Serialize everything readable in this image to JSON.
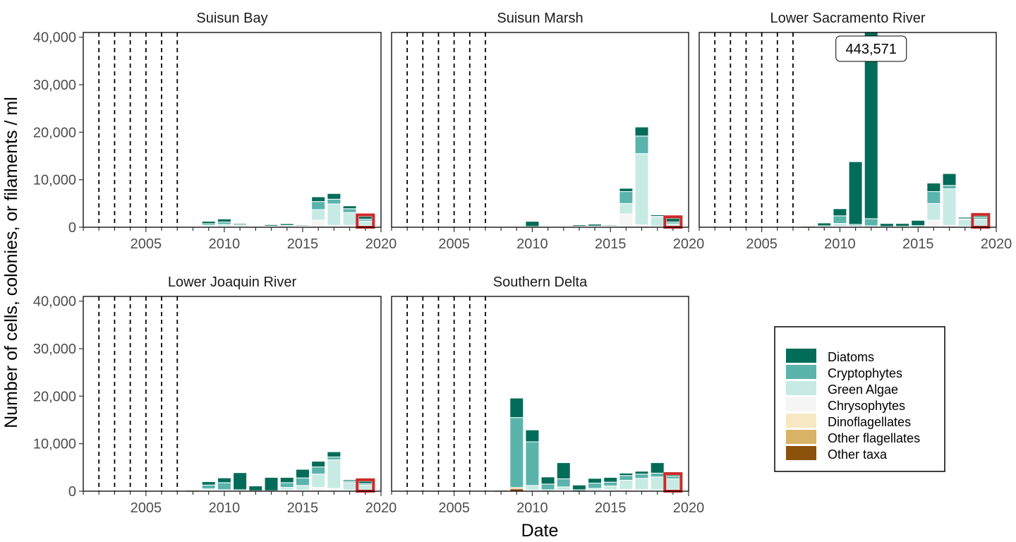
{
  "chart_data": {
    "type": "bar",
    "stacked": true,
    "xlabel": "Date",
    "ylabel": "Number of cells, colonies, or filaments / ml",
    "ylim": [
      0,
      41000
    ],
    "y_ticks": [
      0,
      10000,
      20000,
      30000,
      40000
    ],
    "y_tick_labels": [
      "0",
      "10,000",
      "20,000",
      "30,000",
      "40,000"
    ],
    "xlim": [
      2001,
      2020
    ],
    "x_ticks": [
      2005,
      2010,
      2015,
      2020
    ],
    "x_tick_labels": [
      "2005",
      "2010",
      "2015",
      "2020"
    ],
    "dashed_years": [
      2002,
      2003,
      2004,
      2005,
      2006,
      2007
    ],
    "highlight_year": 2019,
    "highlight_color": "#cc2a2a",
    "taxa": [
      {
        "name": "Diatoms",
        "color": "#016c59"
      },
      {
        "name": "Cryptophytes",
        "color": "#5ab4ac"
      },
      {
        "name": "Green Algae",
        "color": "#c7eae5"
      },
      {
        "name": "Chrysophytes",
        "color": "#f5f5f5"
      },
      {
        "name": "Dinoflagellates",
        "color": "#f6e8c3"
      },
      {
        "name": "Other flagellates",
        "color": "#d8b365"
      },
      {
        "name": "Other taxa",
        "color": "#8c510a"
      }
    ],
    "legend_position": "right",
    "panels": [
      {
        "title": "Suisun Bay",
        "years": [
          2008,
          2009,
          2010,
          2011,
          2012,
          2013,
          2014,
          2015,
          2016,
          2017,
          2018,
          2019
        ],
        "stacks": [
          [
            0,
            0,
            0,
            0,
            0,
            80,
            150
          ],
          [
            500,
            350,
            250,
            150,
            0,
            0,
            0
          ],
          [
            650,
            500,
            450,
            150,
            0,
            0,
            0
          ],
          [
            250,
            200,
            200,
            100,
            0,
            0,
            0
          ],
          [
            150,
            50,
            100,
            0,
            0,
            0,
            0
          ],
          [
            300,
            150,
            100,
            0,
            0,
            0,
            0
          ],
          [
            350,
            200,
            200,
            0,
            0,
            0,
            0
          ],
          [
            200,
            150,
            150,
            0,
            0,
            0,
            0
          ],
          [
            1000,
            1700,
            2200,
            1500,
            0,
            0,
            0
          ],
          [
            1200,
            1000,
            4500,
            400,
            0,
            0,
            0
          ],
          [
            600,
            800,
            2700,
            400,
            0,
            0,
            0
          ],
          [
            600,
            400,
            1000,
            300,
            0,
            0,
            0
          ]
        ]
      },
      {
        "title": "Suisun Marsh",
        "years": [
          2008,
          2009,
          2010,
          2013,
          2014,
          2015,
          2016,
          2017,
          2018,
          2019
        ],
        "stacks": [
          [
            0,
            0,
            0,
            0,
            0,
            100,
            150
          ],
          [
            100,
            50,
            50,
            0,
            0,
            0,
            0
          ],
          [
            1100,
            100,
            50,
            0,
            0,
            0,
            0
          ],
          [
            300,
            100,
            100,
            0,
            0,
            0,
            0
          ],
          [
            400,
            150,
            100,
            0,
            0,
            0,
            0
          ],
          [
            200,
            150,
            150,
            0,
            0,
            0,
            0
          ],
          [
            700,
            2500,
            2200,
            2800,
            0,
            0,
            0
          ],
          [
            1900,
            3700,
            15000,
            500,
            0,
            0,
            0
          ],
          [
            300,
            200,
            1900,
            200,
            0,
            0,
            0
          ],
          [
            800,
            400,
            400,
            300,
            0,
            0,
            0
          ]
        ]
      },
      {
        "title": "Lower Sacramento River",
        "years": [
          2008,
          2009,
          2010,
          2011,
          2012,
          2013,
          2014,
          2015,
          2016,
          2017,
          2018,
          2019
        ],
        "stacks": [
          [
            0,
            0,
            0,
            0,
            0,
            100,
            200
          ],
          [
            600,
            200,
            100,
            0,
            0,
            0,
            0
          ],
          [
            1500,
            1600,
            600,
            200,
            0,
            0,
            0
          ],
          [
            13200,
            300,
            200,
            100,
            0,
            0,
            0
          ],
          [
            441800,
            1500,
            300,
            0,
            0,
            0,
            0
          ],
          [
            650,
            150,
            0,
            0,
            0,
            0,
            0
          ],
          [
            600,
            200,
            0,
            0,
            0,
            0,
            0
          ],
          [
            1100,
            250,
            100,
            0,
            0,
            0,
            0
          ],
          [
            1800,
            2500,
            3500,
            1500,
            0,
            0,
            0
          ],
          [
            2500,
            700,
            7700,
            400,
            0,
            0,
            0
          ],
          [
            300,
            200,
            1400,
            200,
            0,
            0,
            0
          ],
          [
            300,
            400,
            1600,
            100,
            0,
            0,
            0
          ]
        ],
        "callout": {
          "year": 2012,
          "label": "443,571"
        }
      },
      {
        "title": "Lower Joaquin River",
        "years": [
          2008,
          2009,
          2010,
          2011,
          2012,
          2013,
          2014,
          2015,
          2016,
          2017,
          2018,
          2019
        ],
        "stacks": [
          [
            0,
            0,
            0,
            0,
            0,
            100,
            200
          ],
          [
            700,
            800,
            300,
            200,
            0,
            0,
            0
          ],
          [
            1000,
            1500,
            200,
            100,
            0,
            0,
            0
          ],
          [
            3600,
            200,
            100,
            0,
            0,
            0,
            0
          ],
          [
            1000,
            100,
            0,
            0,
            0,
            0,
            0
          ],
          [
            2800,
            100,
            0,
            0,
            0,
            0,
            0
          ],
          [
            1100,
            1000,
            600,
            200,
            0,
            0,
            0
          ],
          [
            1800,
            1600,
            1000,
            200,
            0,
            0,
            0
          ],
          [
            1200,
            1500,
            2800,
            800,
            0,
            0,
            0
          ],
          [
            1100,
            600,
            6000,
            600,
            0,
            0,
            0
          ],
          [
            300,
            300,
            1600,
            200,
            0,
            0,
            0
          ],
          [
            500,
            300,
            1100,
            200,
            0,
            0,
            0
          ]
        ]
      },
      {
        "title": "Southern Delta",
        "years": [
          2008,
          2009,
          2010,
          2011,
          2012,
          2013,
          2014,
          2015,
          2016,
          2017,
          2018,
          2019
        ],
        "stacks": [
          [
            0,
            0,
            0,
            0,
            0,
            100,
            200
          ],
          [
            4100,
            14700,
            0,
            0,
            0,
            300,
            500
          ],
          [
            2500,
            9200,
            1000,
            200,
            0,
            0,
            0
          ],
          [
            1500,
            1200,
            300,
            0,
            0,
            0,
            0
          ],
          [
            3400,
            1700,
            700,
            200,
            0,
            0,
            0
          ],
          [
            1000,
            300,
            0,
            0,
            0,
            0,
            0
          ],
          [
            1000,
            1100,
            400,
            200,
            0,
            0,
            0
          ],
          [
            1000,
            800,
            800,
            300,
            0,
            0,
            0
          ],
          [
            500,
            1000,
            1900,
            400,
            0,
            0,
            0
          ],
          [
            600,
            900,
            2400,
            300,
            0,
            0,
            0
          ],
          [
            2200,
            800,
            2700,
            300,
            0,
            0,
            0
          ],
          [
            300,
            500,
            2300,
            300,
            0,
            0,
            0
          ]
        ]
      }
    ]
  }
}
